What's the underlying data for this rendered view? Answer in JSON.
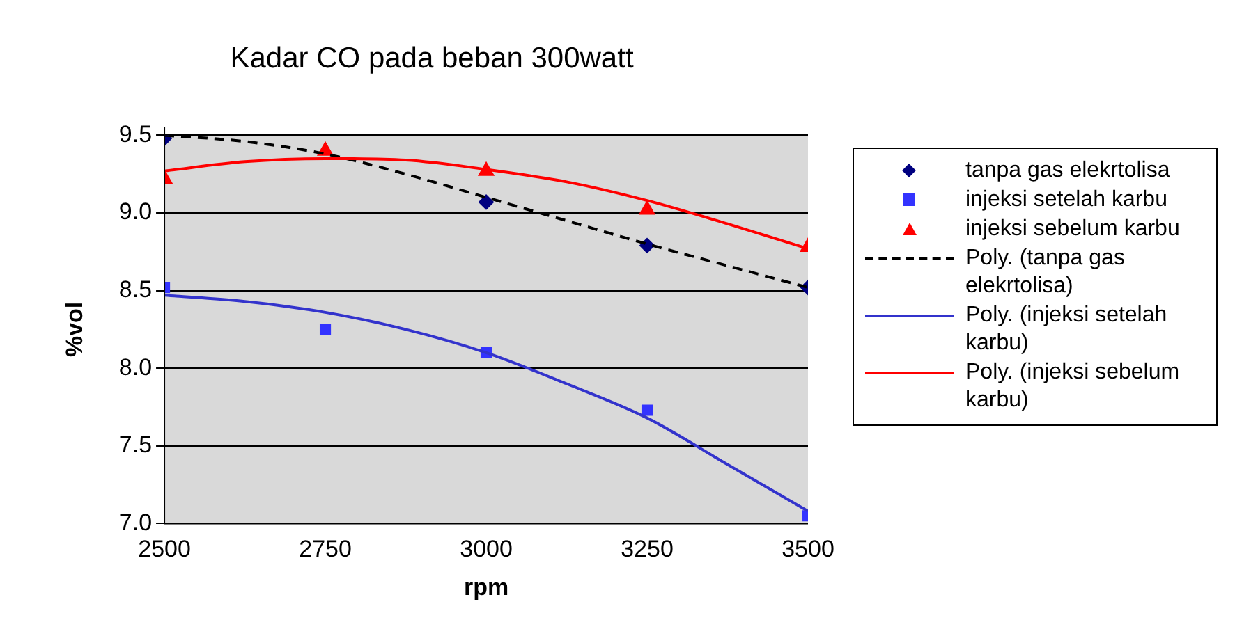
{
  "chart_data": {
    "type": "scatter",
    "title": "Kadar CO pada beban 300watt",
    "xlabel": "rpm",
    "ylabel": "%vol",
    "xlim": [
      2500,
      3500
    ],
    "xticks": [
      2500,
      2750,
      3000,
      3250,
      3500
    ],
    "ylim": [
      7.0,
      9.5
    ],
    "yticks": [
      {
        "value": 7.0,
        "label": "7.0"
      },
      {
        "value": 7.5,
        "label": "7.5"
      },
      {
        "value": 8.0,
        "label": "8.0"
      },
      {
        "value": 8.5,
        "label": "8.5"
      },
      {
        "value": 9.0,
        "label": "9.0"
      },
      {
        "value": 9.5,
        "label": "9.5"
      }
    ],
    "grid": "y",
    "legend": "right",
    "x": [
      2500,
      2750,
      3000,
      3250,
      3500
    ],
    "series": [
      {
        "name": "tanpa gas elekrtolisa",
        "marker": "diamond",
        "color": "#000080",
        "values": [
          9.48,
          null,
          9.07,
          8.79,
          8.52
        ]
      },
      {
        "name": "injeksi setelah karbu",
        "marker": "square",
        "color": "#3333ff",
        "values": [
          8.52,
          8.25,
          8.1,
          7.73,
          7.05
        ]
      },
      {
        "name": "injeksi sebelum karbu",
        "marker": "triangle",
        "color": "#ff0000",
        "values": [
          9.22,
          9.4,
          9.27,
          9.02,
          8.78
        ]
      },
      {
        "name": "Poly. (tanpa gas elekrtolisa)",
        "type": "line",
        "line_style": "dashed",
        "marker": "none",
        "color": "#000000",
        "x": [
          2500,
          2625,
          2750,
          2875,
          3000,
          3125,
          3250,
          3375,
          3500
        ],
        "values": [
          9.5,
          9.46,
          9.38,
          9.25,
          9.1,
          8.95,
          8.8,
          8.66,
          8.52
        ]
      },
      {
        "name": "Poly. (injeksi setelah karbu)",
        "type": "line",
        "line_style": "solid",
        "marker": "none",
        "color": "#3333cc",
        "x": [
          2500,
          2625,
          2750,
          2875,
          3000,
          3125,
          3250,
          3375,
          3500
        ],
        "values": [
          8.47,
          8.43,
          8.36,
          8.25,
          8.1,
          7.9,
          7.68,
          7.38,
          7.08
        ]
      },
      {
        "name": "Poly. (injeksi sebelum karbu)",
        "type": "line",
        "line_style": "solid",
        "marker": "none",
        "color": "#ff0000",
        "x": [
          2500,
          2625,
          2750,
          2875,
          3000,
          3125,
          3250,
          3375,
          3500
        ],
        "values": [
          9.27,
          9.33,
          9.35,
          9.34,
          9.28,
          9.2,
          9.08,
          8.93,
          8.77
        ]
      }
    ]
  }
}
